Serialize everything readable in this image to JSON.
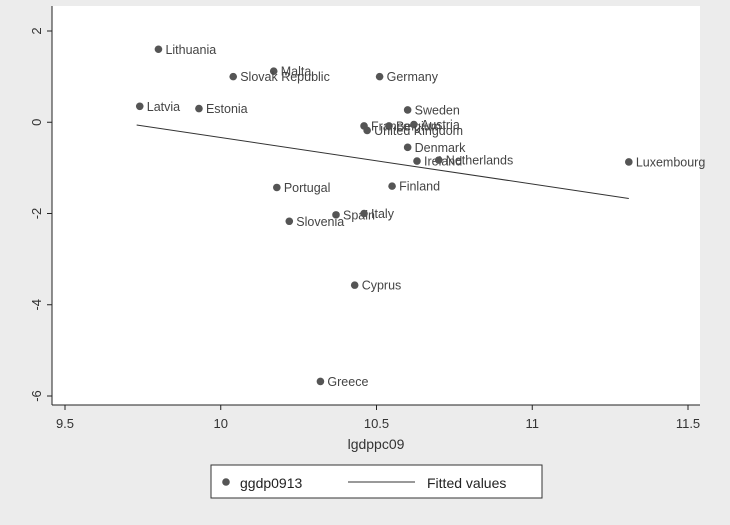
{
  "chart_data": {
    "type": "scatter",
    "xlabel": "lgdppc09",
    "ylabel": "",
    "xlim": [
      9.5,
      11.5
    ],
    "ylim": [
      -6.2,
      2.2
    ],
    "x_ticks": [
      9.5,
      10,
      10.5,
      11,
      11.5
    ],
    "x_tick_labels": [
      "9.5",
      "10",
      "10.5",
      "11",
      "11.5"
    ],
    "y_ticks": [
      2,
      0,
      -2,
      -4,
      -6
    ],
    "y_tick_labels": [
      "2",
      "0",
      "-2",
      "-4",
      "-6"
    ],
    "grid": false,
    "legend_position": "bottom",
    "series": [
      {
        "name": "ggdp0913",
        "kind": "points",
        "color": "#555555",
        "points": [
          {
            "label": "Lithuania",
            "x": 9.8,
            "y": 1.6
          },
          {
            "label": "Malta",
            "x": 10.17,
            "y": 1.12
          },
          {
            "label": "Slovak Republic",
            "x": 10.04,
            "y": 1.0
          },
          {
            "label": "Germany",
            "x": 10.51,
            "y": 1.0
          },
          {
            "label": "Latvia",
            "x": 9.74,
            "y": 0.35
          },
          {
            "label": "Estonia",
            "x": 9.93,
            "y": 0.3
          },
          {
            "label": "Sweden",
            "x": 10.6,
            "y": 0.27
          },
          {
            "label": "France",
            "x": 10.46,
            "y": -0.08
          },
          {
            "label": "Belgium",
            "x": 10.54,
            "y": -0.08
          },
          {
            "label": "Austria",
            "x": 10.62,
            "y": -0.05
          },
          {
            "label": "United Kingdom",
            "x": 10.47,
            "y": -0.18
          },
          {
            "label": "Denmark",
            "x": 10.6,
            "y": -0.55
          },
          {
            "label": "Ireland",
            "x": 10.63,
            "y": -0.85
          },
          {
            "label": "Netherlands",
            "x": 10.7,
            "y": -0.83
          },
          {
            "label": "Luxembourg",
            "x": 11.31,
            "y": -0.87
          },
          {
            "label": "Portugal",
            "x": 10.18,
            "y": -1.43
          },
          {
            "label": "Finland",
            "x": 10.55,
            "y": -1.4
          },
          {
            "label": "Spain",
            "x": 10.37,
            "y": -2.03
          },
          {
            "label": "Italy",
            "x": 10.46,
            "y": -2.0
          },
          {
            "label": "Slovenia",
            "x": 10.22,
            "y": -2.17
          },
          {
            "label": "Cyprus",
            "x": 10.43,
            "y": -3.57
          },
          {
            "label": "Greece",
            "x": 10.32,
            "y": -5.68
          }
        ]
      },
      {
        "name": "Fitted values",
        "kind": "line",
        "color": "#333333",
        "x": [
          9.73,
          11.31
        ],
        "y": [
          -0.06,
          -1.67
        ]
      }
    ]
  }
}
